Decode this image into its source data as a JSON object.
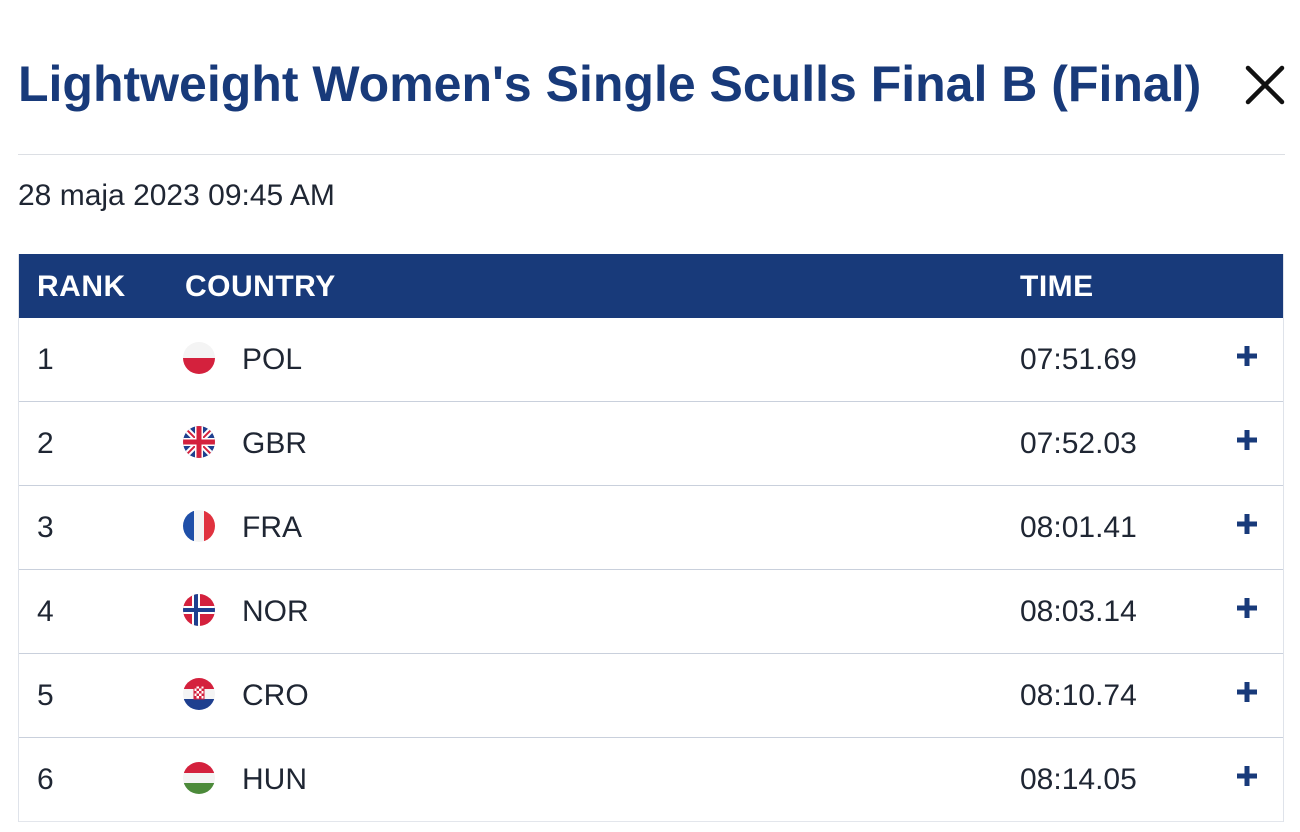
{
  "header": {
    "title": "Lightweight Women's Single Sculls Final B (Final)",
    "close_icon": "close-icon",
    "datetime": "28 maja 2023 09:45 AM"
  },
  "table": {
    "columns": {
      "rank": "RANK",
      "country": "COUNTRY",
      "time": "TIME"
    },
    "rows": [
      {
        "rank": "1",
        "country": "POL",
        "flag": "poland-flag-icon",
        "time": "07:51.69"
      },
      {
        "rank": "2",
        "country": "GBR",
        "flag": "uk-flag-icon",
        "time": "07:52.03"
      },
      {
        "rank": "3",
        "country": "FRA",
        "flag": "france-flag-icon",
        "time": "08:01.41"
      },
      {
        "rank": "4",
        "country": "NOR",
        "flag": "norway-flag-icon",
        "time": "08:03.14"
      },
      {
        "rank": "5",
        "country": "CRO",
        "flag": "croatia-flag-icon",
        "time": "08:10.74"
      },
      {
        "rank": "6",
        "country": "HUN",
        "flag": "hungary-flag-icon",
        "time": "08:14.05"
      }
    ]
  },
  "colors": {
    "brand_navy": "#183a7a",
    "text": "#1f2633",
    "row_divider": "#c9d0dc"
  }
}
